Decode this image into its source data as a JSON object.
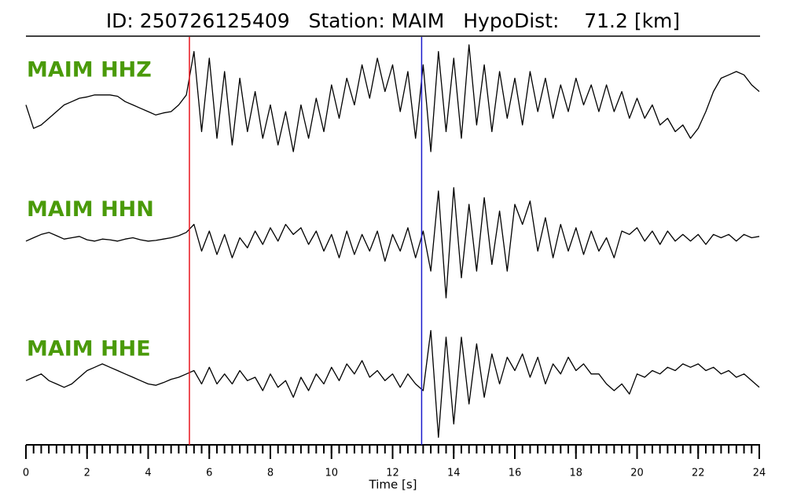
{
  "chart_data": {
    "type": "seismogram",
    "title": "ID: 250726125409   Station: MAIM   HypoDist:    71.2 [km]",
    "x_label": "Time [s]",
    "xlim": [
      0,
      24
    ],
    "xticks": [
      0,
      2,
      4,
      6,
      8,
      10,
      12,
      14,
      16,
      18,
      20,
      22,
      24
    ],
    "xminor": 0.25,
    "ylim": [
      -1,
      1
    ],
    "picks": [
      {
        "value": 5.35,
        "color": "#e8141c"
      },
      {
        "value": 12.95,
        "color": "#1a1acc"
      }
    ],
    "label_color": "#4a9a0a",
    "x": [
      0,
      0.25,
      0.5,
      0.75,
      1,
      1.25,
      1.5,
      1.75,
      2,
      2.25,
      2.5,
      2.75,
      3,
      3.25,
      3.5,
      3.75,
      4,
      4.25,
      4.5,
      4.75,
      5,
      5.25,
      5.5,
      5.75,
      6,
      6.25,
      6.5,
      6.75,
      7,
      7.25,
      7.5,
      7.75,
      8,
      8.25,
      8.5,
      8.75,
      9,
      9.25,
      9.5,
      9.75,
      10,
      10.25,
      10.5,
      10.75,
      11,
      11.25,
      11.5,
      11.75,
      12,
      12.25,
      12.5,
      12.75,
      13,
      13.25,
      13.5,
      13.75,
      14,
      14.25,
      14.5,
      14.75,
      15,
      15.25,
      15.5,
      15.75,
      16,
      16.25,
      16.5,
      16.75,
      17,
      17.25,
      17.5,
      17.75,
      18,
      18.25,
      18.5,
      18.75,
      19,
      19.25,
      19.5,
      19.75,
      20,
      20.25,
      20.5,
      20.75,
      21,
      21.25,
      21.5,
      21.75,
      22,
      22.25,
      22.5,
      22.75,
      23,
      23.25,
      23.5,
      23.75,
      24
    ],
    "series": [
      {
        "name": "MAIM HHZ",
        "color": "#000000",
        "values": [
          -0.1,
          -0.45,
          -0.4,
          -0.3,
          -0.2,
          -0.1,
          -0.05,
          0,
          0.02,
          0.05,
          0.05,
          0.05,
          0.03,
          -0.05,
          -0.1,
          -0.15,
          -0.2,
          -0.25,
          -0.22,
          -0.2,
          -0.1,
          0.05,
          0.7,
          -0.5,
          0.6,
          -0.6,
          0.4,
          -0.7,
          0.3,
          -0.5,
          0.1,
          -0.6,
          -0.1,
          -0.7,
          -0.2,
          -0.8,
          -0.1,
          -0.6,
          0,
          -0.5,
          0.2,
          -0.3,
          0.3,
          -0.1,
          0.5,
          0,
          0.6,
          0.1,
          0.5,
          -0.2,
          0.4,
          -0.6,
          0.5,
          -0.8,
          0.7,
          -0.5,
          0.6,
          -0.6,
          0.8,
          -0.4,
          0.5,
          -0.5,
          0.4,
          -0.3,
          0.3,
          -0.4,
          0.4,
          -0.2,
          0.3,
          -0.3,
          0.2,
          -0.2,
          0.3,
          -0.1,
          0.2,
          -0.2,
          0.2,
          -0.2,
          0.1,
          -0.3,
          0,
          -0.3,
          -0.1,
          -0.4,
          -0.3,
          -0.5,
          -0.4,
          -0.6,
          -0.45,
          -0.2,
          0.1,
          0.3,
          0.35,
          0.4,
          0.35,
          0.2,
          0.1
        ]
      },
      {
        "name": "MAIM HHN",
        "color": "#000000",
        "values": [
          -0.05,
          0,
          0.05,
          0.08,
          0.03,
          -0.02,
          0,
          0.02,
          -0.03,
          -0.05,
          -0.02,
          -0.03,
          -0.05,
          -0.02,
          0,
          -0.03,
          -0.05,
          -0.04,
          -0.02,
          0,
          0.03,
          0.08,
          0.2,
          -0.2,
          0.1,
          -0.25,
          0.05,
          -0.3,
          0,
          -0.15,
          0.1,
          -0.1,
          0.15,
          -0.05,
          0.2,
          0.05,
          0.15,
          -0.1,
          0.1,
          -0.2,
          0.05,
          -0.3,
          0.1,
          -0.25,
          0.05,
          -0.2,
          0.1,
          -0.35,
          0.05,
          -0.2,
          0.15,
          -0.3,
          0.1,
          -0.5,
          0.7,
          -0.9,
          0.75,
          -0.6,
          0.5,
          -0.5,
          0.6,
          -0.4,
          0.4,
          -0.5,
          0.5,
          0.2,
          0.55,
          -0.2,
          0.3,
          -0.3,
          0.2,
          -0.2,
          0.15,
          -0.25,
          0.1,
          -0.2,
          0,
          -0.3,
          0.1,
          0.05,
          0.15,
          -0.05,
          0.1,
          -0.1,
          0.1,
          -0.05,
          0.05,
          -0.05,
          0.05,
          -0.1,
          0.05,
          0,
          0.05,
          -0.05,
          0.05,
          0,
          0.02
        ]
      },
      {
        "name": "MAIM HHE",
        "color": "#000000",
        "values": [
          -0.05,
          0,
          0.05,
          -0.05,
          -0.1,
          -0.15,
          -0.1,
          0,
          0.1,
          0.15,
          0.2,
          0.15,
          0.1,
          0.05,
          0,
          -0.05,
          -0.1,
          -0.12,
          -0.08,
          -0.03,
          0,
          0.05,
          0.1,
          -0.1,
          0.15,
          -0.1,
          0.05,
          -0.1,
          0.1,
          -0.05,
          0,
          -0.2,
          0.05,
          -0.15,
          -0.05,
          -0.3,
          0,
          -0.2,
          0.05,
          -0.1,
          0.15,
          -0.05,
          0.2,
          0.05,
          0.25,
          0,
          0.1,
          -0.05,
          0.05,
          -0.15,
          0.05,
          -0.1,
          -0.2,
          0.7,
          -0.9,
          0.6,
          -0.7,
          0.6,
          -0.4,
          0.5,
          -0.3,
          0.35,
          -0.1,
          0.3,
          0.1,
          0.35,
          0,
          0.3,
          -0.1,
          0.2,
          0.05,
          0.3,
          0.1,
          0.2,
          0.05,
          0.05,
          -0.1,
          -0.2,
          -0.1,
          -0.25,
          0.05,
          0,
          0.1,
          0.05,
          0.15,
          0.1,
          0.2,
          0.15,
          0.2,
          0.1,
          0.15,
          0.05,
          0.1,
          0,
          0.05,
          -0.05,
          -0.15
        ]
      }
    ]
  }
}
